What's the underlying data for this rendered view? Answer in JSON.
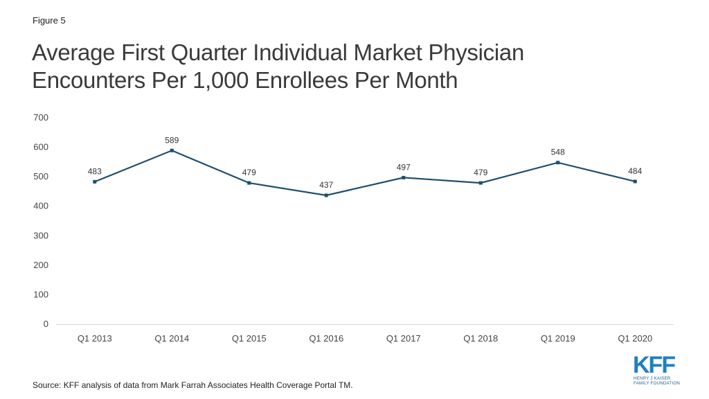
{
  "figure_label": "Figure 5",
  "title_lines": [
    "Average First Quarter Individual Market Physician",
    "Encounters Per 1,000 Enrollees Per Month"
  ],
  "source": "Source: KFF analysis of data from Mark Farrah Associates Health Coverage Portal TM.",
  "logo": {
    "main": "KFF",
    "line1": "HENRY J KAISER",
    "line2": "FAMILY FOUNDATION"
  },
  "colors": {
    "line": "#1f4e6e",
    "axis": "#d9d9d9",
    "logo": "#1f7fc2"
  },
  "chart_data": {
    "type": "line",
    "categories": [
      "Q1 2013",
      "Q1 2014",
      "Q1 2015",
      "Q1 2016",
      "Q1 2017",
      "Q1 2018",
      "Q1 2019",
      "Q1 2020"
    ],
    "series": [
      {
        "values": [
          483,
          589,
          479,
          437,
          497,
          479,
          548,
          484
        ]
      }
    ],
    "data_labels": [
      "483",
      "589",
      "479",
      "437",
      "497",
      "479",
      "548",
      "484"
    ],
    "ylim": [
      0,
      700
    ],
    "yticks": [
      0,
      100,
      200,
      300,
      400,
      500,
      600,
      700
    ],
    "grid": false,
    "xlabel": "",
    "ylabel": ""
  }
}
